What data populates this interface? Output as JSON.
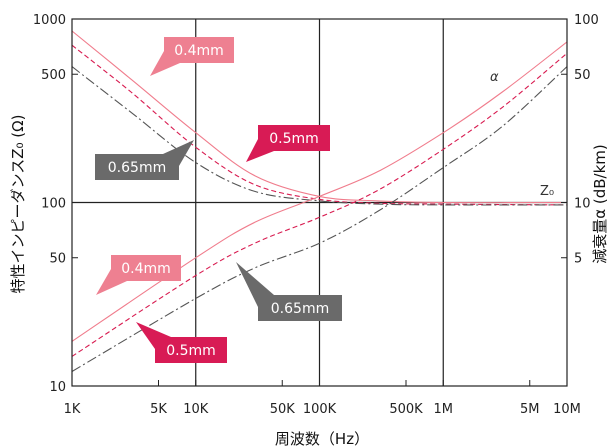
{
  "chart_data": {
    "type": "line",
    "xlabel": "周波数（Hz）",
    "ylabel_left": "特性インピーダンスZ₀ (Ω)",
    "ylabel_right": "減衰量α (dB/km)",
    "x_scale": "log",
    "y_scale": "log",
    "xlim": [
      1000,
      10000000
    ],
    "ylim_left": [
      10,
      1000
    ],
    "ylim_right": [
      1,
      100
    ],
    "x_tick_labels": [
      {
        "value": 1000,
        "label": "1K"
      },
      {
        "value": 5000,
        "label": "5K"
      },
      {
        "value": 10000,
        "label": "10K"
      },
      {
        "value": 50000,
        "label": "50K"
      },
      {
        "value": 100000,
        "label": "100K"
      },
      {
        "value": 500000,
        "label": "500K"
      },
      {
        "value": 1000000,
        "label": "1M"
      },
      {
        "value": 5000000,
        "label": "5M"
      },
      {
        "value": 10000000,
        "label": "10M"
      }
    ],
    "y_tick_labels_left": [
      {
        "value": 1000,
        "label": "1000"
      },
      {
        "value": 500,
        "label": "500"
      },
      {
        "value": 100,
        "label": "100"
      },
      {
        "value": 50,
        "label": "50"
      },
      {
        "value": 10,
        "label": "10"
      }
    ],
    "y_tick_labels_right": [
      {
        "value": 100,
        "label": "100"
      },
      {
        "value": 50,
        "label": "50"
      },
      {
        "value": 10,
        "label": "10"
      },
      {
        "value": 5,
        "label": "5"
      }
    ],
    "grid": {
      "x": [
        10000,
        100000,
        1000000
      ],
      "y": [
        100
      ]
    },
    "curve_labels": {
      "impedance": "Z₀",
      "attenuation": "α"
    },
    "colors": {
      "d040": "#f07c8c",
      "d050": "#d81b50",
      "d065": "#555555",
      "callout_040": "#ee8091",
      "callout_050": "#d81b55",
      "callout_065": "#6a6a6a"
    },
    "series": [
      {
        "name": "0.4mm",
        "quantity": "impedance",
        "style": "solid",
        "color_key": "d040",
        "x": [
          1000,
          3000,
          10000,
          30000,
          100000,
          300000,
          1000000,
          10000000
        ],
        "y": [
          860,
          470,
          240,
          140,
          108,
          102,
          100,
          100
        ]
      },
      {
        "name": "0.5mm",
        "quantity": "impedance",
        "style": "dashed",
        "color_key": "d050",
        "x": [
          1000,
          3000,
          10000,
          30000,
          100000,
          300000,
          1000000,
          10000000
        ],
        "y": [
          720,
          400,
          200,
          125,
          104,
          99,
          98,
          97
        ]
      },
      {
        "name": "0.65mm",
        "quantity": "impedance",
        "style": "dashdot",
        "color_key": "d065",
        "x": [
          1000,
          3000,
          10000,
          30000,
          100000,
          300000,
          1000000,
          10000000
        ],
        "y": [
          550,
          310,
          165,
          115,
          102,
          98,
          97,
          97
        ]
      },
      {
        "name": "0.4mm",
        "quantity": "attenuation",
        "style": "solid",
        "color_key": "d040",
        "x": [
          1000,
          10000,
          30000,
          100000,
          300000,
          1000000,
          3000000,
          10000000
        ],
        "y": [
          1.75,
          5.0,
          7.8,
          10.8,
          14.8,
          24,
          40,
          75
        ]
      },
      {
        "name": "0.5mm",
        "quantity": "attenuation",
        "style": "dashed",
        "color_key": "d050",
        "x": [
          1000,
          10000,
          30000,
          100000,
          300000,
          1000000,
          3000000,
          10000000
        ],
        "y": [
          1.45,
          4.0,
          6.0,
          8.3,
          11.7,
          19.5,
          33,
          65
        ]
      },
      {
        "name": "0.65mm",
        "quantity": "attenuation",
        "style": "dashdot",
        "color_key": "d065",
        "x": [
          1000,
          10000,
          30000,
          100000,
          300000,
          1000000,
          3000000,
          10000000
        ],
        "y": [
          1.2,
          3.0,
          4.4,
          6.0,
          9.0,
          15.5,
          26,
          55
        ]
      }
    ],
    "callouts": [
      {
        "label": "0.4mm",
        "color_key": "callout_040"
      },
      {
        "label": "0.5mm",
        "color_key": "callout_050"
      },
      {
        "label": "0.65mm",
        "color_key": "callout_065"
      },
      {
        "label": "0.4mm",
        "color_key": "callout_040"
      },
      {
        "label": "0.65mm",
        "color_key": "callout_065"
      },
      {
        "label": "0.5mm",
        "color_key": "callout_050"
      }
    ]
  }
}
